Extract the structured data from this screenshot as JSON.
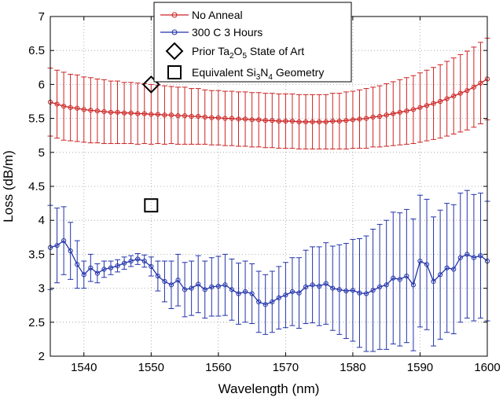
{
  "chart_data": {
    "type": "line",
    "xlabel": "Wavelength (nm)",
    "ylabel": "Loss (dB/m)",
    "xlim": [
      1535,
      1600
    ],
    "ylim": [
      2,
      7
    ],
    "xticks": [
      1540,
      1550,
      1560,
      1570,
      1580,
      1590,
      1600
    ],
    "yticks": [
      2,
      2.5,
      3,
      3.5,
      4,
      4.5,
      5,
      5.5,
      6,
      6.5,
      7
    ],
    "x_tick_labels": [
      "1540",
      "1550",
      "1560",
      "1570",
      "1580",
      "1590",
      "1600"
    ],
    "y_tick_labels": [
      "2",
      "2.5",
      "3",
      "3.5",
      "4",
      "4.5",
      "5",
      "5.5",
      "6",
      "6.5",
      "7"
    ],
    "grid": "dotted",
    "legend_position": "top-center",
    "series": [
      {
        "name": "No Anneal",
        "color": "#cc2222",
        "marker": "circle",
        "errorbars": true,
        "x": [
          1535,
          1536,
          1537,
          1538,
          1539,
          1540,
          1541,
          1542,
          1543,
          1544,
          1545,
          1546,
          1547,
          1548,
          1549,
          1550,
          1551,
          1552,
          1553,
          1554,
          1555,
          1556,
          1557,
          1558,
          1559,
          1560,
          1561,
          1562,
          1563,
          1564,
          1565,
          1566,
          1567,
          1568,
          1569,
          1570,
          1571,
          1572,
          1573,
          1574,
          1575,
          1576,
          1577,
          1578,
          1579,
          1580,
          1581,
          1582,
          1583,
          1584,
          1585,
          1586,
          1587,
          1588,
          1589,
          1590,
          1591,
          1592,
          1593,
          1594,
          1595,
          1596,
          1597,
          1598,
          1599,
          1600
        ],
        "y": [
          5.74,
          5.71,
          5.68,
          5.66,
          5.65,
          5.63,
          5.62,
          5.61,
          5.6,
          5.59,
          5.59,
          5.58,
          5.58,
          5.57,
          5.57,
          5.56,
          5.56,
          5.55,
          5.55,
          5.54,
          5.54,
          5.53,
          5.53,
          5.52,
          5.51,
          5.51,
          5.5,
          5.5,
          5.49,
          5.49,
          5.48,
          5.48,
          5.47,
          5.47,
          5.46,
          5.46,
          5.46,
          5.45,
          5.45,
          5.45,
          5.45,
          5.45,
          5.46,
          5.46,
          5.47,
          5.48,
          5.49,
          5.5,
          5.52,
          5.53,
          5.55,
          5.57,
          5.59,
          5.61,
          5.63,
          5.66,
          5.69,
          5.72,
          5.75,
          5.79,
          5.83,
          5.87,
          5.91,
          5.96,
          6.02,
          6.08
        ],
        "err": [
          0.5,
          0.5,
          0.5,
          0.49,
          0.49,
          0.48,
          0.48,
          0.47,
          0.47,
          0.46,
          0.46,
          0.45,
          0.45,
          0.45,
          0.44,
          0.44,
          0.43,
          0.43,
          0.42,
          0.42,
          0.42,
          0.41,
          0.41,
          0.4,
          0.4,
          0.4,
          0.4,
          0.4,
          0.4,
          0.4,
          0.4,
          0.4,
          0.4,
          0.4,
          0.4,
          0.4,
          0.4,
          0.4,
          0.4,
          0.4,
          0.4,
          0.4,
          0.41,
          0.41,
          0.42,
          0.42,
          0.43,
          0.44,
          0.44,
          0.45,
          0.46,
          0.47,
          0.48,
          0.49,
          0.5,
          0.51,
          0.52,
          0.53,
          0.54,
          0.55,
          0.56,
          0.57,
          0.58,
          0.59,
          0.6,
          0.6
        ]
      },
      {
        "name": "300 C 3 Hours",
        "color": "#2233aa",
        "marker": "circle",
        "errorbars": true,
        "x": [
          1535,
          1536,
          1537,
          1538,
          1539,
          1540,
          1541,
          1542,
          1543,
          1544,
          1545,
          1546,
          1547,
          1548,
          1549,
          1550,
          1551,
          1552,
          1553,
          1554,
          1555,
          1556,
          1557,
          1558,
          1559,
          1560,
          1561,
          1562,
          1563,
          1564,
          1565,
          1566,
          1567,
          1568,
          1569,
          1570,
          1571,
          1572,
          1573,
          1574,
          1575,
          1576,
          1577,
          1578,
          1579,
          1580,
          1581,
          1582,
          1583,
          1584,
          1585,
          1586,
          1587,
          1588,
          1589,
          1590,
          1591,
          1592,
          1593,
          1594,
          1595,
          1596,
          1597,
          1598,
          1599,
          1600
        ],
        "y": [
          3.6,
          3.63,
          3.7,
          3.55,
          3.35,
          3.2,
          3.3,
          3.22,
          3.28,
          3.3,
          3.33,
          3.37,
          3.4,
          3.43,
          3.4,
          3.32,
          3.18,
          3.1,
          3.05,
          3.12,
          2.98,
          3.0,
          3.06,
          2.98,
          3.02,
          3.03,
          3.05,
          2.98,
          2.92,
          2.95,
          2.92,
          2.8,
          2.76,
          2.8,
          2.86,
          2.9,
          2.95,
          2.93,
          3.02,
          3.05,
          3.03,
          3.07,
          3.0,
          2.98,
          2.96,
          2.97,
          2.93,
          2.92,
          2.97,
          3.02,
          3.05,
          3.15,
          3.13,
          3.18,
          3.05,
          3.4,
          3.35,
          3.1,
          3.2,
          3.3,
          3.28,
          3.45,
          3.5,
          3.45,
          3.48,
          3.4
        ],
        "err": [
          0.62,
          0.55,
          0.5,
          0.42,
          0.35,
          0.2,
          0.2,
          0.14,
          0.12,
          0.1,
          0.09,
          0.09,
          0.08,
          0.08,
          0.09,
          0.14,
          0.22,
          0.3,
          0.35,
          0.38,
          0.4,
          0.4,
          0.42,
          0.42,
          0.43,
          0.44,
          0.45,
          0.45,
          0.45,
          0.45,
          0.44,
          0.45,
          0.44,
          0.45,
          0.46,
          0.48,
          0.5,
          0.52,
          0.54,
          0.56,
          0.58,
          0.6,
          0.62,
          0.66,
          0.7,
          0.75,
          0.8,
          0.85,
          0.9,
          0.92,
          0.95,
          0.97,
          0.98,
          0.98,
          0.97,
          0.97,
          0.96,
          0.95,
          0.95,
          0.95,
          0.95,
          0.95,
          0.94,
          0.93,
          0.92,
          0.88
        ]
      },
      {
        "name": "Prior Ta2O5 State of Art",
        "color": "#000000",
        "marker": "diamond",
        "errorbars": false,
        "x": [
          1550
        ],
        "y": [
          6.0
        ]
      },
      {
        "name": "Equivalent Si3N4 Geometry",
        "color": "#000000",
        "marker": "square",
        "errorbars": false,
        "x": [
          1550
        ],
        "y": [
          4.22
        ]
      }
    ],
    "legend": [
      {
        "series": "No Anneal",
        "text": "No Anneal",
        "sub": []
      },
      {
        "series": "300 C 3 Hours",
        "text": "300 C 3 Hours",
        "sub": []
      },
      {
        "series": "Prior Ta2O5 State of Art",
        "parts": [
          "Prior Ta",
          "2",
          "O",
          "5",
          " State of Art"
        ]
      },
      {
        "series": "Equivalent Si3N4 Geometry",
        "parts": [
          "Equivalent Si",
          "3",
          "N",
          "4",
          " Geometry"
        ]
      }
    ]
  }
}
